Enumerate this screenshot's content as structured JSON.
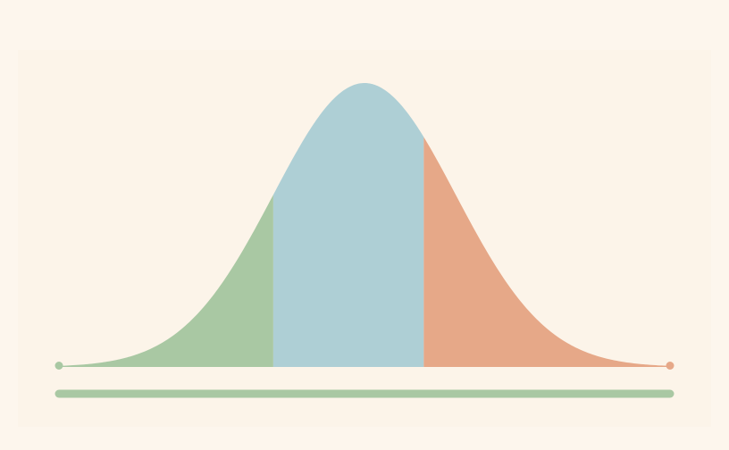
{
  "chart_data": {
    "type": "area",
    "title": "",
    "xlabel": "",
    "ylabel": "",
    "distribution": "normal",
    "mean": 0,
    "std": 1,
    "xlim": [
      -3.35,
      3.35
    ],
    "regions": [
      {
        "from": -3.35,
        "to": -1.0,
        "color": "#a9c8a3"
      },
      {
        "from": -1.0,
        "to": 0.65,
        "color": "#aecfd5"
      },
      {
        "from": 0.65,
        "to": 3.35,
        "color": "#e6a888"
      }
    ],
    "baseline_color": "#a9c8a3",
    "grid": false,
    "legend": "none"
  }
}
